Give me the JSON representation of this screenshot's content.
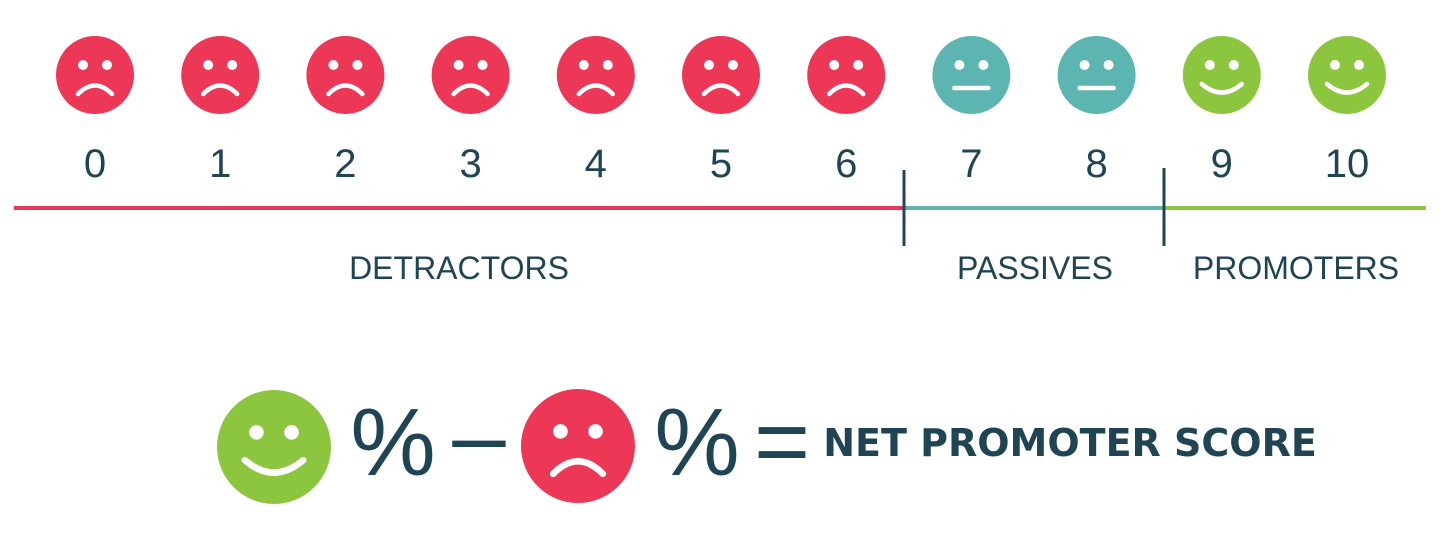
{
  "colors": {
    "detractor": "#ec3757",
    "passive": "#5cb5b1",
    "promoter": "#8cc63f",
    "text": "#1f4454",
    "face_features": "#ffffff"
  },
  "scale": {
    "scores": [
      {
        "label": "0",
        "group": "detractor",
        "icon": "sad-face-icon"
      },
      {
        "label": "1",
        "group": "detractor",
        "icon": "sad-face-icon"
      },
      {
        "label": "2",
        "group": "detractor",
        "icon": "sad-face-icon"
      },
      {
        "label": "3",
        "group": "detractor",
        "icon": "sad-face-icon"
      },
      {
        "label": "4",
        "group": "detractor",
        "icon": "sad-face-icon"
      },
      {
        "label": "5",
        "group": "detractor",
        "icon": "sad-face-icon"
      },
      {
        "label": "6",
        "group": "detractor",
        "icon": "sad-face-icon"
      },
      {
        "label": "7",
        "group": "passive",
        "icon": "neutral-face-icon"
      },
      {
        "label": "8",
        "group": "passive",
        "icon": "neutral-face-icon"
      },
      {
        "label": "9",
        "group": "promoter",
        "icon": "happy-face-icon"
      },
      {
        "label": "10",
        "group": "promoter",
        "icon": "happy-face-icon"
      }
    ],
    "groups": {
      "detractor": {
        "label": "DETRACTORS"
      },
      "passive": {
        "label": "PASSIVES"
      },
      "promoter": {
        "label": "PROMOTERS"
      }
    }
  },
  "formula": {
    "percent_symbol": "%",
    "minus_symbol": "–",
    "equals_symbol": "=",
    "result_label": "NET PROMOTER SCORE",
    "left_icon": "happy-face-icon",
    "right_icon": "sad-face-icon"
  }
}
